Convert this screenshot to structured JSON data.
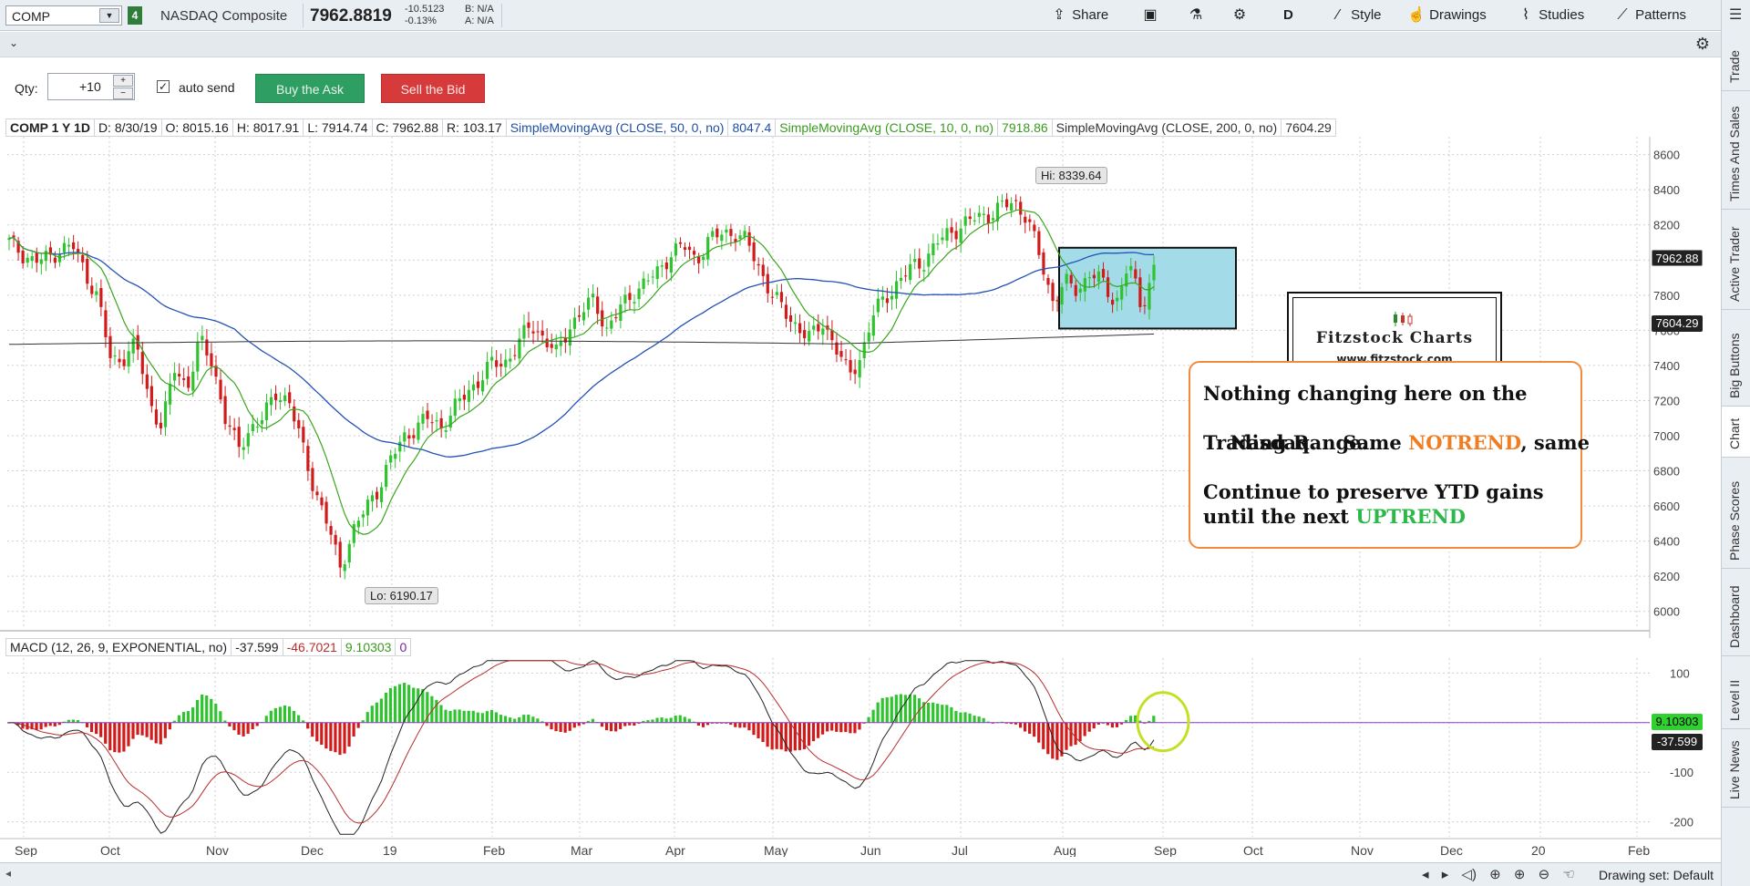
{
  "toolbar": {
    "symbol": "COMP",
    "link_badge": "4",
    "description": "NASDAQ Composite",
    "last_price": "7962.8819",
    "net_change": "-10.5123",
    "pct_change": "-0.13%",
    "bid": "B: N/A",
    "ask": "A: N/A",
    "share_label": "Share",
    "period_label": "D",
    "style_label": "Style",
    "drawings_label": "Drawings",
    "studies_label": "Studies",
    "patterns_label": "Patterns"
  },
  "order": {
    "qty_label": "Qty:",
    "qty_value": "+10",
    "auto_send_label": "auto send",
    "auto_send_checked": true,
    "buy_label": "Buy the Ask",
    "sell_label": "Sell the Bid"
  },
  "chart_header": {
    "symbol_period": "COMP 1 Y 1D",
    "date": "D: 8/30/19",
    "open": "O: 8015.16",
    "high": "H: 8017.91",
    "low": "L: 7914.74",
    "close": "C: 7962.88",
    "range": "R: 103.17",
    "sma50_label": "SimpleMovingAvg (CLOSE, 50, 0, no)",
    "sma50_value": "8047.4",
    "sma10_label": "SimpleMovingAvg (CLOSE, 10, 0, no)",
    "sma10_value": "7918.86",
    "sma200_label": "SimpleMovingAvg (CLOSE, 200, 0, no)",
    "sma200_value": "7604.29"
  },
  "macd_header": {
    "label": "MACD (12, 26, 9, EXPONENTIAL, no)",
    "value": "-37.599",
    "avg": "-46.7021",
    "diff": "9.10303",
    "zero": "0"
  },
  "price_labels": {
    "close": "7962.88",
    "sma200": "7604.29",
    "macd_diff": "9.10303",
    "macd_value": "-37.599",
    "hi": "Hi: 8339.64",
    "lo": "Lo: 6190.17"
  },
  "annotation": {
    "line1": "Nothing changing here on the",
    "line2a": "Nasdaq.    Same ",
    "line2b": "NOTREND",
    "line2c": ", same",
    "line3": "Trading Range.",
    "line4": "Continue to preserve YTD gains",
    "line5a": "until the next ",
    "line5b": "UPTREND"
  },
  "logo": {
    "title": "Fitzstock Charts",
    "url": "www.fitzstock.com"
  },
  "side_tabs": [
    "Trade",
    "Times And Sales",
    "Active Trader",
    "Big Buttons",
    "Chart",
    "Phase Scores",
    "Dashboard",
    "Level II",
    "Live News"
  ],
  "bottom": {
    "drawing_set": "Drawing set: Default"
  },
  "colors": {
    "up_candle": "#2fc42f",
    "down_candle": "#d11a1a",
    "sma50": "#2452b5",
    "sma10": "#3aa61e",
    "sma200": "#333333",
    "range_box": "#a3dbe9",
    "annotation_border": "#f08a3c"
  },
  "chart_data": {
    "type": "candlestick",
    "title": "COMP 1 Y 1D",
    "ylim": [
      5900,
      8650
    ],
    "yticks": [
      6000,
      6200,
      6400,
      6600,
      6800,
      7000,
      7200,
      7400,
      7600,
      7800,
      8000,
      8200,
      8400,
      8600
    ],
    "x_labels": [
      "Sep",
      "Oct",
      "Nov",
      "Dec",
      "19",
      "Feb",
      "Mar",
      "Apr",
      "May",
      "Jun",
      "Jul",
      "Aug",
      "Sep",
      "Oct",
      "Nov",
      "Dec",
      "20",
      "Feb"
    ],
    "close_path": [
      8100,
      8040,
      7990,
      8010,
      8060,
      8080,
      7930,
      7780,
      7420,
      7450,
      7520,
      7200,
      7050,
      7380,
      7280,
      7540,
      7410,
      7100,
      6920,
      7050,
      7100,
      7250,
      7200,
      6950,
      6700,
      6500,
      6250,
      6450,
      6580,
      6700,
      6860,
      6990,
      7050,
      7100,
      7050,
      7150,
      7250,
      7320,
      7410,
      7420,
      7510,
      7640,
      7560,
      7460,
      7620,
      7700,
      7780,
      7600,
      7720,
      7810,
      7870,
      7930,
      8040,
      8080,
      8000,
      8110,
      8150,
      8160,
      8100,
      7950,
      7800,
      7700,
      7620,
      7550,
      7650,
      7500,
      7340,
      7460,
      7700,
      7800,
      7880,
      7960,
      8000,
      8100,
      8160,
      8200,
      8240,
      8260,
      8300,
      8330,
      8250,
      8020,
      7770,
      7870,
      7820,
      7940,
      7860,
      7750,
      7990,
      7720,
      7960
    ],
    "hi": 8339.64,
    "lo": 6190.17,
    "range_box": {
      "top": 8070,
      "bottom": 7610
    },
    "macd": {
      "ylim": [
        -230,
        130
      ],
      "yticks": [
        100,
        0,
        -100,
        -200
      ],
      "value": -37.599,
      "avg": -46.7021,
      "diff": 9.10303
    }
  }
}
